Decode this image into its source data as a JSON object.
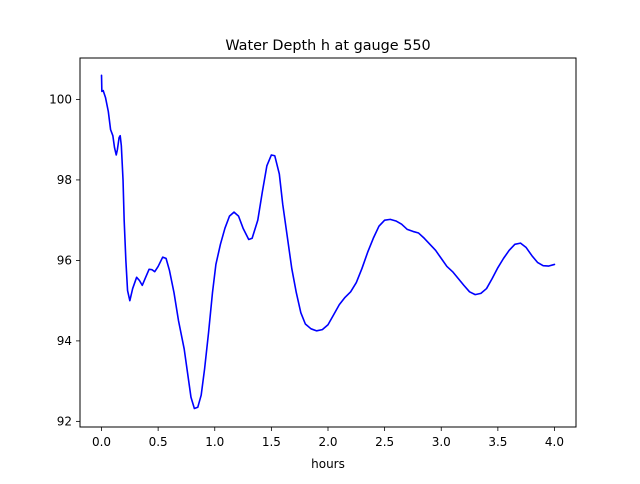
{
  "chart_data": {
    "type": "line",
    "title": "Water Depth h at gauge 550",
    "xlabel": "hours",
    "ylabel": "",
    "xlim": [
      -0.19,
      4.19
    ],
    "ylim": [
      91.86,
      101.03
    ],
    "xticks": [
      0.0,
      0.5,
      1.0,
      1.5,
      2.0,
      2.5,
      3.0,
      3.5,
      4.0
    ],
    "xtick_labels": [
      "0.0",
      "0.5",
      "1.0",
      "1.5",
      "2.0",
      "2.5",
      "3.0",
      "3.5",
      "4.0"
    ],
    "yticks": [
      92,
      94,
      96,
      98,
      100
    ],
    "ytick_labels": [
      "92",
      "94",
      "96",
      "98",
      "100"
    ],
    "grid": false,
    "legend": "none",
    "colors": {
      "line": "#0000ff",
      "axes": "#000000",
      "background": "#ffffff"
    },
    "series": [
      {
        "values_xy": [
          [
            0.0,
            100.6
          ],
          [
            0.003,
            100.2
          ],
          [
            0.015,
            100.22
          ],
          [
            0.035,
            100.05
          ],
          [
            0.06,
            99.7
          ],
          [
            0.08,
            99.25
          ],
          [
            0.1,
            99.1
          ],
          [
            0.115,
            98.8
          ],
          [
            0.13,
            98.62
          ],
          [
            0.14,
            98.75
          ],
          [
            0.155,
            99.05
          ],
          [
            0.165,
            99.1
          ],
          [
            0.175,
            98.85
          ],
          [
            0.19,
            98.0
          ],
          [
            0.2,
            97.0
          ],
          [
            0.215,
            96.0
          ],
          [
            0.23,
            95.25
          ],
          [
            0.25,
            95.0
          ],
          [
            0.275,
            95.3
          ],
          [
            0.31,
            95.58
          ],
          [
            0.335,
            95.5
          ],
          [
            0.36,
            95.38
          ],
          [
            0.385,
            95.55
          ],
          [
            0.42,
            95.78
          ],
          [
            0.445,
            95.77
          ],
          [
            0.47,
            95.72
          ],
          [
            0.5,
            95.85
          ],
          [
            0.54,
            96.08
          ],
          [
            0.57,
            96.05
          ],
          [
            0.6,
            95.75
          ],
          [
            0.64,
            95.2
          ],
          [
            0.68,
            94.5
          ],
          [
            0.73,
            93.8
          ],
          [
            0.76,
            93.2
          ],
          [
            0.79,
            92.6
          ],
          [
            0.82,
            92.32
          ],
          [
            0.85,
            92.35
          ],
          [
            0.88,
            92.65
          ],
          [
            0.91,
            93.3
          ],
          [
            0.945,
            94.2
          ],
          [
            0.98,
            95.2
          ],
          [
            1.01,
            95.9
          ],
          [
            1.05,
            96.4
          ],
          [
            1.09,
            96.8
          ],
          [
            1.13,
            97.1
          ],
          [
            1.17,
            97.2
          ],
          [
            1.21,
            97.1
          ],
          [
            1.25,
            96.8
          ],
          [
            1.3,
            96.52
          ],
          [
            1.33,
            96.55
          ],
          [
            1.38,
            97.0
          ],
          [
            1.42,
            97.7
          ],
          [
            1.46,
            98.35
          ],
          [
            1.5,
            98.62
          ],
          [
            1.53,
            98.6
          ],
          [
            1.57,
            98.15
          ],
          [
            1.6,
            97.4
          ],
          [
            1.64,
            96.6
          ],
          [
            1.68,
            95.8
          ],
          [
            1.72,
            95.2
          ],
          [
            1.76,
            94.7
          ],
          [
            1.8,
            94.42
          ],
          [
            1.85,
            94.3
          ],
          [
            1.9,
            94.25
          ],
          [
            1.95,
            94.28
          ],
          [
            2.0,
            94.4
          ],
          [
            2.05,
            94.65
          ],
          [
            2.1,
            94.9
          ],
          [
            2.15,
            95.08
          ],
          [
            2.2,
            95.22
          ],
          [
            2.25,
            95.45
          ],
          [
            2.3,
            95.8
          ],
          [
            2.35,
            96.2
          ],
          [
            2.4,
            96.55
          ],
          [
            2.45,
            96.85
          ],
          [
            2.5,
            97.0
          ],
          [
            2.55,
            97.02
          ],
          [
            2.6,
            96.98
          ],
          [
            2.65,
            96.9
          ],
          [
            2.7,
            96.77
          ],
          [
            2.75,
            96.72
          ],
          [
            2.8,
            96.68
          ],
          [
            2.85,
            96.55
          ],
          [
            2.9,
            96.4
          ],
          [
            2.95,
            96.25
          ],
          [
            3.0,
            96.05
          ],
          [
            3.05,
            95.85
          ],
          [
            3.1,
            95.72
          ],
          [
            3.15,
            95.55
          ],
          [
            3.2,
            95.38
          ],
          [
            3.25,
            95.22
          ],
          [
            3.3,
            95.15
          ],
          [
            3.35,
            95.18
          ],
          [
            3.4,
            95.3
          ],
          [
            3.45,
            95.55
          ],
          [
            3.5,
            95.82
          ],
          [
            3.55,
            96.05
          ],
          [
            3.6,
            96.25
          ],
          [
            3.65,
            96.4
          ],
          [
            3.7,
            96.43
          ],
          [
            3.75,
            96.32
          ],
          [
            3.8,
            96.12
          ],
          [
            3.85,
            95.95
          ],
          [
            3.9,
            95.87
          ],
          [
            3.95,
            95.86
          ],
          [
            4.0,
            95.9
          ]
        ]
      }
    ]
  }
}
